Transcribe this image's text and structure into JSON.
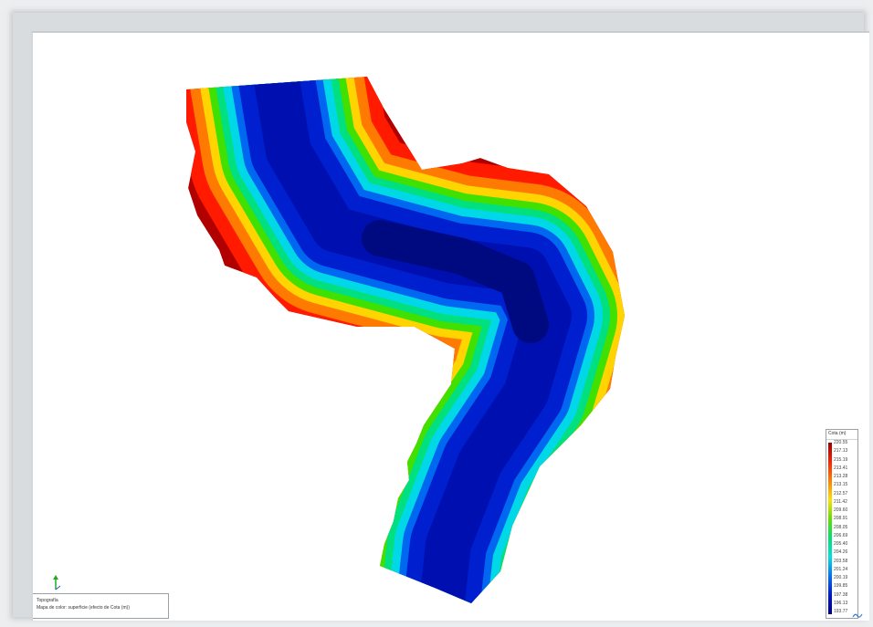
{
  "legend": {
    "title": "Cota (m)",
    "values": [
      "220.55",
      "217.13",
      "215.19",
      "213.41",
      "213.28",
      "213.15",
      "212.57",
      "211.42",
      "209.60",
      "208.91",
      "208.05",
      "206.69",
      "205.40",
      "204.26",
      "203.58",
      "201.24",
      "200.19",
      "199.85",
      "197.38",
      "196.13",
      "193.77"
    ],
    "colors": [
      "#a00000",
      "#ff2000",
      "#ff8000",
      "#ffe000",
      "#60e000",
      "#00e070",
      "#00e0e0",
      "#0070ff",
      "#0018d8",
      "#000090"
    ]
  },
  "info": {
    "line1": "Topografía",
    "line2": "Mapa de color: superficie (efecto de Cota (m))"
  },
  "colors": {
    "bank": "#d80a0a",
    "deep": "#0018b8"
  }
}
